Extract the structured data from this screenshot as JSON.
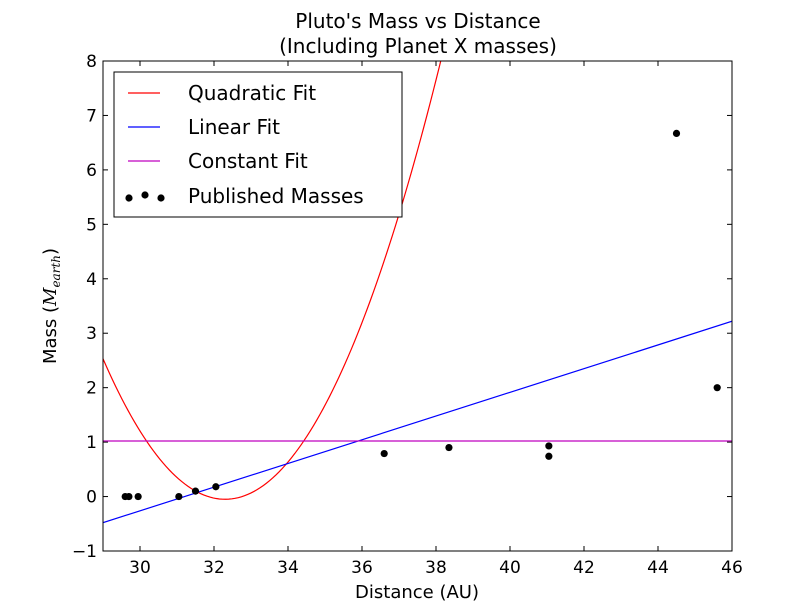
{
  "chart_data": {
    "type": "scatter",
    "title": "Pluto's Mass vs Distance",
    "subtitle": "(Including Planet X masses)",
    "xlabel": "Distance (AU)",
    "ylabel_prefix": "Mass (",
    "ylabel_math_main": "M",
    "ylabel_math_sub": "earth",
    "ylabel_suffix": ")",
    "xlim": [
      29,
      46
    ],
    "ylim": [
      -1,
      8
    ],
    "x_ticks": [
      30,
      32,
      34,
      36,
      38,
      40,
      42,
      44,
      46
    ],
    "x_tick_labels": [
      "30",
      "32",
      "34",
      "36",
      "38",
      "40",
      "42",
      "44",
      "46"
    ],
    "y_ticks": [
      -1,
      0,
      1,
      2,
      3,
      4,
      5,
      6,
      7,
      8
    ],
    "y_tick_labels": [
      "−1",
      "0",
      "1",
      "2",
      "3",
      "4",
      "5",
      "6",
      "7",
      "8"
    ],
    "grid": false,
    "legend_position": "top-left",
    "legend": [
      {
        "label": "Quadratic Fit",
        "kind": "line",
        "color": "#ff0000"
      },
      {
        "label": "Linear Fit",
        "kind": "line",
        "color": "#0000ff"
      },
      {
        "label": "Constant Fit",
        "kind": "line",
        "color": "#bf00bf"
      },
      {
        "label": "Published Masses",
        "kind": "points",
        "color": "#000000"
      }
    ],
    "series": [
      {
        "name": "Quadratic Fit",
        "kind": "quadratic",
        "color": "#ff0000",
        "vertex_x": 32.3,
        "vertex_y": -0.05,
        "curvature": 0.237
      },
      {
        "name": "Linear Fit",
        "kind": "linear",
        "color": "#0000ff",
        "x": [
          29,
          46
        ],
        "y": [
          -0.48,
          3.22
        ]
      },
      {
        "name": "Constant Fit",
        "kind": "constant",
        "color": "#bf00bf",
        "value": 1.02
      },
      {
        "name": "Published Masses",
        "kind": "points",
        "color": "#000000",
        "x": [
          29.6,
          29.7,
          29.95,
          31.05,
          31.5,
          32.05,
          36.6,
          38.35,
          41.05,
          41.05,
          44.5,
          45.6
        ],
        "y": [
          0.0,
          0.0,
          0.0,
          0.0,
          0.1,
          0.18,
          0.79,
          0.9,
          0.93,
          0.74,
          6.67,
          2.0
        ]
      }
    ]
  }
}
